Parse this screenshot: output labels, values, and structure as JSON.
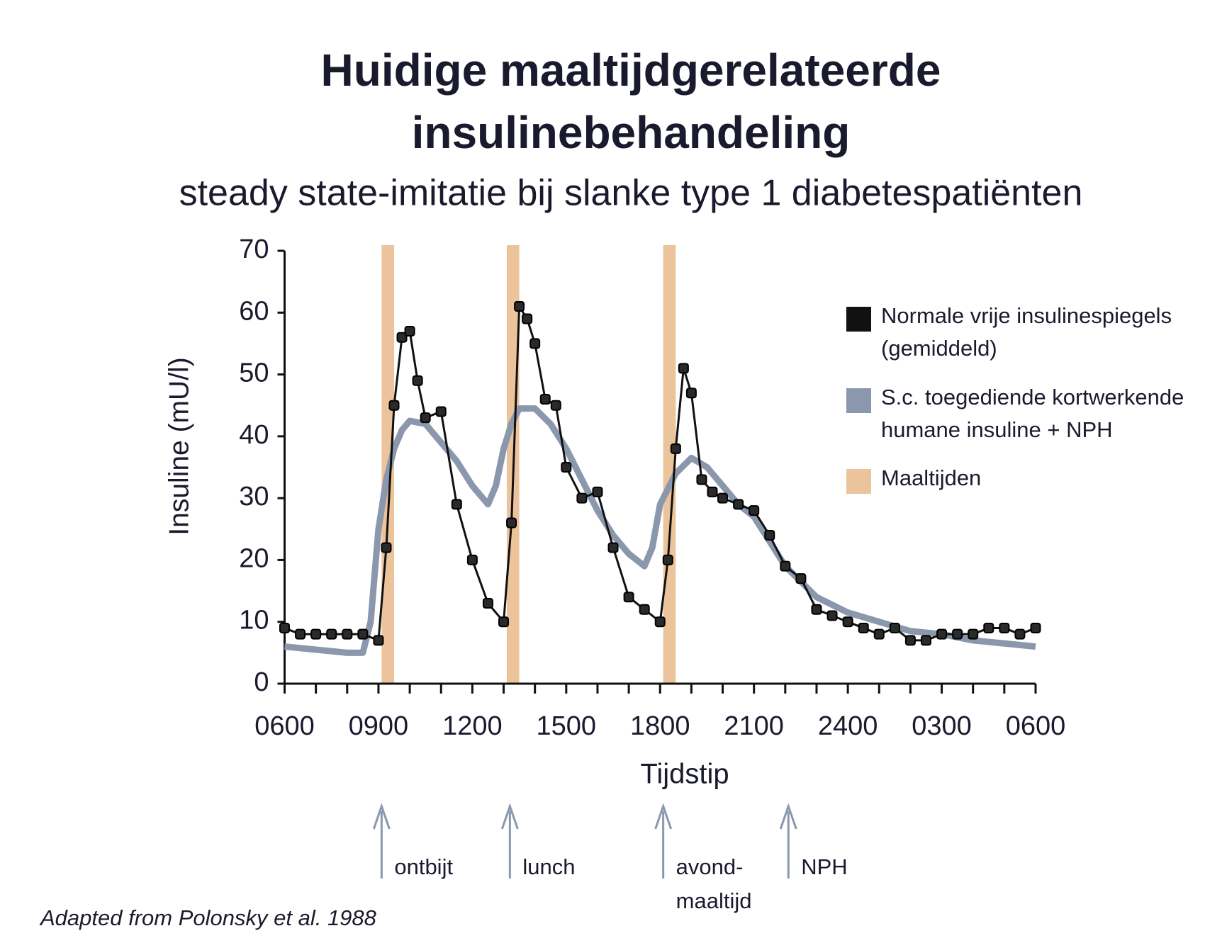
{
  "chart_data": {
    "type": "line",
    "title": [
      "Huidige maaltijdgerelateerde",
      "insulinebehandeling"
    ],
    "subtitle": "steady state-imitatie bij slanke type 1 diabetespatiënten",
    "y_label": "Insuline (mU/l)",
    "x_label": "Tijdstip",
    "xlim": [
      6,
      30
    ],
    "ylim": [
      0,
      70
    ],
    "yticks": [
      0,
      10,
      20,
      30,
      40,
      50,
      60,
      70
    ],
    "xticks": [
      {
        "value": 6,
        "label": "0600"
      },
      {
        "value": 9,
        "label": "0900"
      },
      {
        "value": 12,
        "label": "1200"
      },
      {
        "value": 15,
        "label": "1500"
      },
      {
        "value": 18,
        "label": "1800"
      },
      {
        "value": 21,
        "label": "2100"
      },
      {
        "value": 24,
        "label": "2400"
      },
      {
        "value": 27,
        "label": "0300"
      },
      {
        "value": 30,
        "label": "0600"
      }
    ],
    "xminor": [
      7,
      8,
      10,
      11,
      13,
      14,
      16,
      17,
      19,
      20,
      22,
      23,
      25,
      26,
      28,
      29
    ],
    "series": [
      {
        "name": "Normale vrije insulinespiegels (gemiddeld)",
        "color": "#111111",
        "markers": true,
        "width": 3,
        "x": [
          6,
          6.5,
          7,
          7.5,
          8,
          8.5,
          9,
          9.25,
          9.5,
          9.75,
          10,
          10.25,
          10.5,
          11,
          11.5,
          12,
          12.5,
          13,
          13.25,
          13.5,
          13.75,
          14,
          14.33,
          14.67,
          15,
          15.5,
          16,
          16.5,
          17,
          17.5,
          18,
          18.25,
          18.5,
          18.75,
          19,
          19.33,
          19.67,
          20,
          20.5,
          21,
          21.5,
          22,
          22.5,
          23,
          23.5,
          24,
          24.5,
          25,
          25.5,
          26,
          26.5,
          27,
          27.5,
          28,
          28.5,
          29,
          29.5,
          30
        ],
        "values": [
          9,
          8,
          8,
          8,
          8,
          8,
          7,
          22,
          45,
          56,
          57,
          49,
          43,
          44,
          29,
          20,
          13,
          10,
          26,
          61,
          59,
          55,
          46,
          45,
          35,
          30,
          31,
          22,
          14,
          12,
          10,
          20,
          38,
          51,
          47,
          33,
          31,
          30,
          29,
          28,
          24,
          19,
          17,
          12,
          11,
          10,
          9,
          8,
          9,
          7,
          7,
          8,
          8,
          8,
          9,
          9,
          8,
          9
        ]
      },
      {
        "name": "S.c. toegediende kortwerkende humane insuline + NPH",
        "color": "#8a97ad",
        "markers": false,
        "width": 9,
        "x": [
          6,
          7,
          8,
          8.5,
          8.75,
          9,
          9.25,
          9.5,
          9.75,
          10,
          10.5,
          11,
          11.5,
          12,
          12.5,
          12.75,
          13,
          13.25,
          13.5,
          14,
          14.5,
          15,
          15.5,
          16,
          16.5,
          17,
          17.5,
          17.75,
          18,
          18.5,
          19,
          19.5,
          20,
          20.5,
          21,
          21.5,
          22,
          22.5,
          23,
          24,
          25,
          26,
          27,
          28,
          29,
          30
        ],
        "values": [
          6,
          5.5,
          5,
          5,
          10,
          25,
          33,
          38,
          41,
          42.5,
          42,
          39,
          36,
          32,
          29,
          32,
          38,
          42,
          44.5,
          44.5,
          42,
          38,
          33,
          28,
          24,
          21,
          19,
          22,
          29,
          34,
          36.5,
          35,
          32,
          29,
          27,
          23,
          19,
          16.5,
          14,
          11.5,
          10,
          8.5,
          8,
          7,
          6.5,
          6
        ]
      }
    ],
    "meals": {
      "name": "Maaltijden",
      "color": "#ecc49b",
      "bands": [
        [
          9.1,
          9.5
        ],
        [
          13.1,
          13.5
        ],
        [
          18.1,
          18.5
        ]
      ]
    },
    "annotations": [
      {
        "x": 9.1,
        "text": [
          "ontbijt"
        ]
      },
      {
        "x": 13.2,
        "text": [
          "lunch"
        ]
      },
      {
        "x": 18.1,
        "text": [
          "avond-",
          "maaltijd"
        ]
      },
      {
        "x": 22.1,
        "text": [
          "NPH"
        ]
      }
    ],
    "annotation_color": "#8a97ad",
    "source": "Adapted from Polonsky et al. 1988"
  }
}
